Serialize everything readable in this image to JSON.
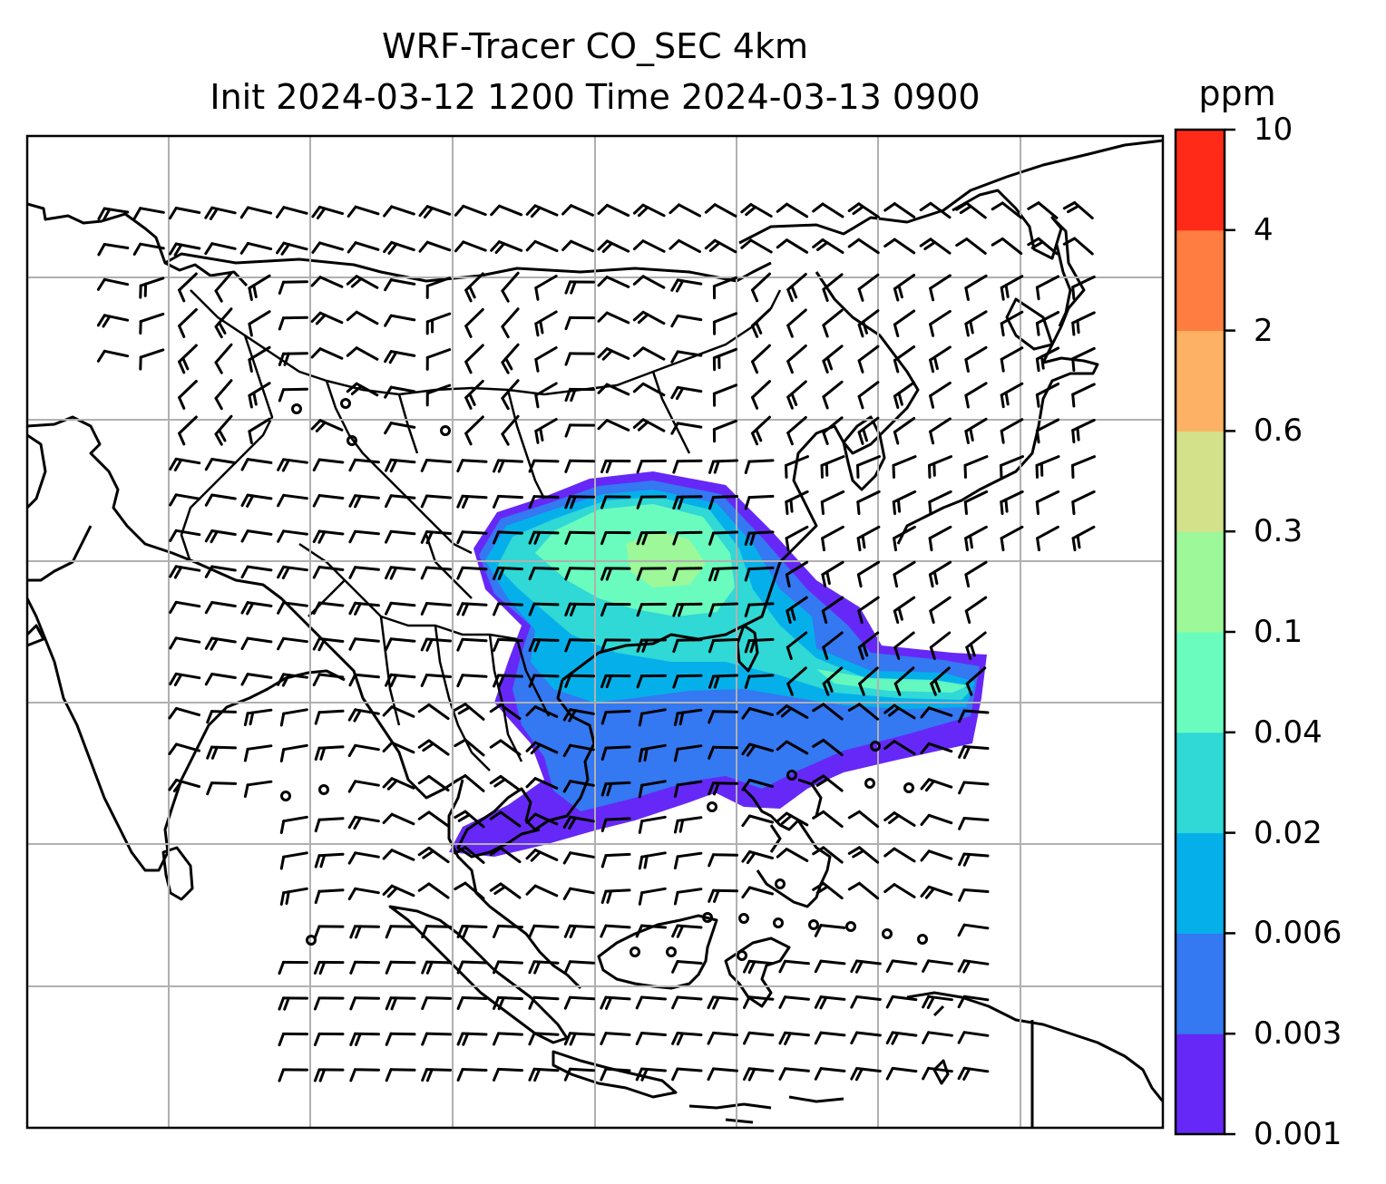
{
  "title_line1": "WRF-Tracer CO_SEC 4km",
  "title_line2": "Init 2024-03-12 1200 Time 2024-03-13 0900",
  "colorbar": {
    "unit": "ppm",
    "levels": [
      "0.001",
      "0.003",
      "0.006",
      "0.02",
      "0.04",
      "0.1",
      "0.3",
      "0.6",
      "2",
      "4",
      "10"
    ],
    "colors": [
      "#6628f6",
      "#3478f2",
      "#05b0ea",
      "#30d8d6",
      "#6afcbe",
      "#9cf898",
      "#d2e18a",
      "#fdb164",
      "#ff7d40",
      "#ff2a18"
    ]
  },
  "map": {
    "content": "CO tracer concentration shading with wind barbs over South / East / Southeast Asia",
    "plume_color_scale": "rainbow"
  }
}
